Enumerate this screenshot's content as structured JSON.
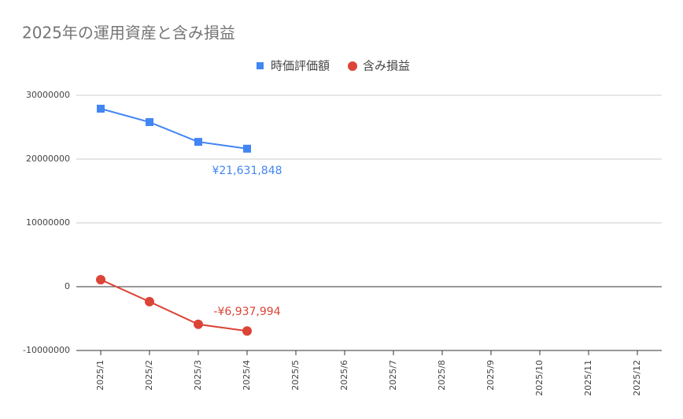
{
  "chart_data": {
    "type": "line",
    "title": "2025年の運用資産と含み損益",
    "categories": [
      "2025/1",
      "2025/2",
      "2025/3",
      "2025/4",
      "2025/5",
      "2025/6",
      "2025/7",
      "2025/8",
      "2025/9",
      "2025/10",
      "2025/11",
      "2025/12"
    ],
    "series": [
      {
        "name": "時価評価額",
        "color": "#4285f4",
        "marker": "square",
        "values": [
          27900000,
          25800000,
          22700000,
          21631848,
          null,
          null,
          null,
          null,
          null,
          null,
          null,
          null
        ],
        "value_labels": [
          null,
          null,
          null,
          "¥21,631,848",
          null,
          null,
          null,
          null,
          null,
          null,
          null,
          null
        ]
      },
      {
        "name": "含み損益",
        "color": "#db4437",
        "marker": "circle",
        "values": [
          1100000,
          -2350000,
          -5900000,
          -6937994,
          null,
          null,
          null,
          null,
          null,
          null,
          null,
          null
        ],
        "value_labels": [
          null,
          null,
          null,
          "-¥6,937,994",
          null,
          null,
          null,
          null,
          null,
          null,
          null,
          null
        ]
      }
    ],
    "ylim": [
      -10000000,
      30000000
    ],
    "yticks": [
      -10000000,
      0,
      10000000,
      20000000,
      30000000
    ],
    "grid": true,
    "legend": "top"
  }
}
